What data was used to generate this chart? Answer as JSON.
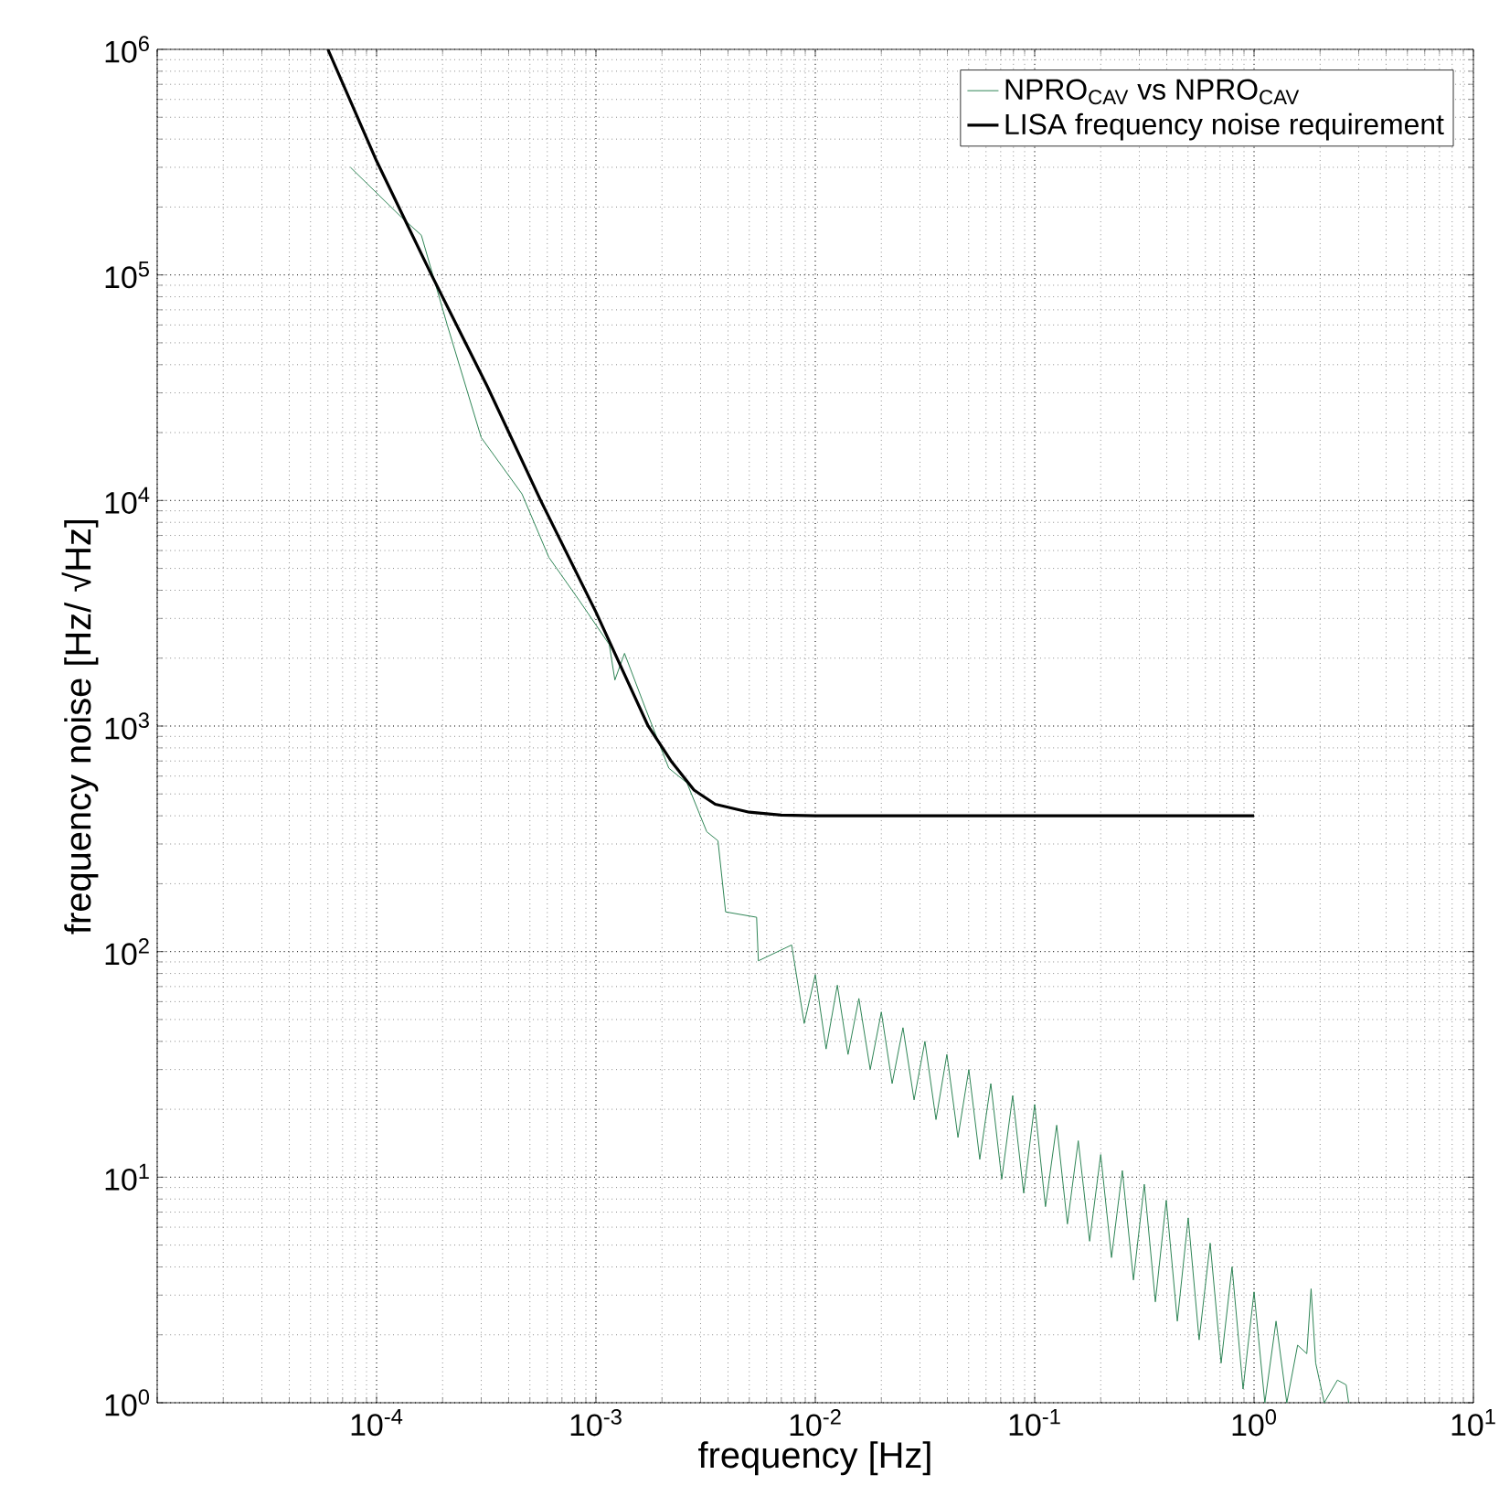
{
  "chart_data": {
    "type": "line",
    "xlabel": "frequency [Hz]",
    "ylabel": "frequency noise [Hz/ √Hz]",
    "log": "xy",
    "grid": true,
    "legend": "top right",
    "xlim": [
      1e-05,
      10
    ],
    "ylim": [
      1,
      1000000.0
    ],
    "xticks": [
      {
        "value": 1e-05,
        "label": null
      },
      {
        "value": 0.0001,
        "label": "10$^{-4}$"
      },
      {
        "value": 0.001,
        "label": "10$^{-3}$"
      },
      {
        "value": 0.01,
        "label": "10$^{-2}$"
      },
      {
        "value": 0.1,
        "label": "10$^{-1}$"
      },
      {
        "value": 1,
        "label": "10$^{0}$"
      },
      {
        "value": 10,
        "label": "10$^{1}$"
      }
    ],
    "yticks": [
      {
        "value": 1,
        "label": "10$^{0}$"
      },
      {
        "value": 10,
        "label": "10$^{1}$"
      },
      {
        "value": 100,
        "label": "10$^{2}$"
      },
      {
        "value": 1000,
        "label": "10$^{3}$"
      },
      {
        "value": 10000,
        "label": "10$^{4}$"
      },
      {
        "value": 100000,
        "label": "10$^{5}$"
      },
      {
        "value": 1000000,
        "label": "10$^{6}$"
      }
    ],
    "series": [
      {
        "name": "NPRO$_{CAV}$ vs NPRO$_{CAV}$",
        "color": "#2e8555",
        "x": [
          7.6e-05,
          0.00013,
          0.00016,
          0.00021,
          0.0003,
          0.00046,
          0.00061,
          0.00084,
          0.00115,
          0.00122,
          0.00135,
          0.00168,
          0.00215,
          0.0026,
          0.0032,
          0.0036,
          0.0039,
          0.0054,
          0.0055,
          0.0078,
          0.0089,
          0.01,
          0.0112,
          0.0126,
          0.0141,
          0.0158,
          0.0178,
          0.02,
          0.0224,
          0.0251,
          0.0282,
          0.0316,
          0.0355,
          0.0398,
          0.0447,
          0.0501,
          0.0562,
          0.0631,
          0.0708,
          0.0794,
          0.0891,
          0.1,
          0.112,
          0.126,
          0.141,
          0.158,
          0.178,
          0.2,
          0.224,
          0.251,
          0.282,
          0.316,
          0.355,
          0.398,
          0.447,
          0.501,
          0.562,
          0.631,
          0.708,
          0.794,
          0.891,
          1.0,
          1.12,
          1.26,
          1.41,
          1.58,
          1.74,
          1.82,
          1.91,
          2.09,
          2.4,
          2.63,
          2.7
        ],
        "values": [
          300000,
          180000,
          150000,
          60000,
          19000,
          10700,
          5600,
          3600,
          2300,
          1600,
          2100,
          1200,
          650,
          560,
          340,
          310,
          150,
          142,
          91,
          107,
          48,
          79,
          37,
          71,
          35,
          62,
          30,
          54,
          26,
          46,
          22,
          40,
          18,
          35,
          15,
          30,
          12,
          26,
          9.8,
          23,
          8.5,
          21,
          7.4,
          17,
          6.2,
          14.5,
          5.2,
          12.6,
          4.4,
          10.7,
          3.5,
          9.3,
          2.8,
          7.9,
          2.3,
          6.6,
          1.9,
          5.1,
          1.5,
          4.0,
          1.15,
          3.1,
          1,
          2.3,
          1,
          1.8,
          1.65,
          3.2,
          1.5,
          1,
          1.26,
          1.2,
          1
        ]
      },
      {
        "name": "LISA frequency noise requirement",
        "color": "#000000",
        "x": [
          6e-05,
          0.0001,
          0.000178,
          0.00032,
          0.00056,
          0.001,
          0.00173,
          0.0022,
          0.0028,
          0.0035,
          0.005,
          0.007,
          0.01,
          0.1,
          1
        ],
        "values": [
          1000000,
          320000,
          100000,
          32000,
          10000,
          3200,
          1000,
          700,
          520,
          450,
          415,
          403,
          400,
          400,
          400
        ]
      }
    ]
  }
}
